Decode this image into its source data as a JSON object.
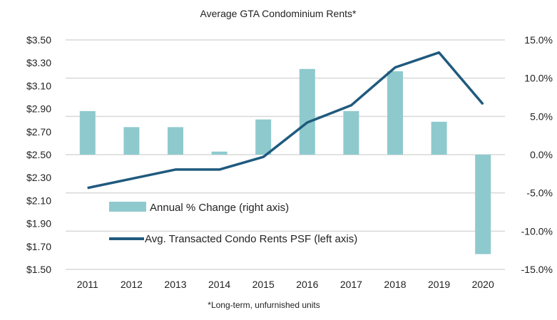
{
  "chart_data": {
    "type": "bar+line",
    "title": "Average GTA Condominium Rents*",
    "footnote": "*Long-term, unfurnished units",
    "categories": [
      "2011",
      "2012",
      "2013",
      "2014",
      "2015",
      "2016",
      "2017",
      "2018",
      "2019",
      "2020"
    ],
    "series": [
      {
        "name": "Annual % Change (right axis)",
        "type": "bar",
        "axis": "right",
        "color": "#8ecacd",
        "values": [
          5.7,
          3.6,
          3.6,
          0.4,
          4.6,
          11.2,
          5.7,
          10.9,
          4.3,
          -13.0
        ]
      },
      {
        "name": "Avg. Transacted Condo Rents PSF (left axis)",
        "type": "line",
        "axis": "left",
        "color": "#1f5a7e",
        "values": [
          2.21,
          2.29,
          2.37,
          2.37,
          2.48,
          2.78,
          2.93,
          3.26,
          3.39,
          2.94
        ]
      }
    ],
    "left_axis": {
      "ylim": [
        1.5,
        3.5
      ],
      "ticks": [
        "$3.50",
        "$3.30",
        "$3.10",
        "$2.90",
        "$2.70",
        "$2.50",
        "$2.30",
        "$2.10",
        "$1.90",
        "$1.70",
        "$1.50"
      ]
    },
    "right_axis": {
      "ylim": [
        -15,
        15
      ],
      "ticks": [
        "15.0%",
        "10.0%",
        "5.0%",
        "0.0%",
        "-5.0%",
        "-10.0%",
        "-15.0%"
      ]
    },
    "grid": true,
    "legend_placement": "lower-center inside plot"
  }
}
